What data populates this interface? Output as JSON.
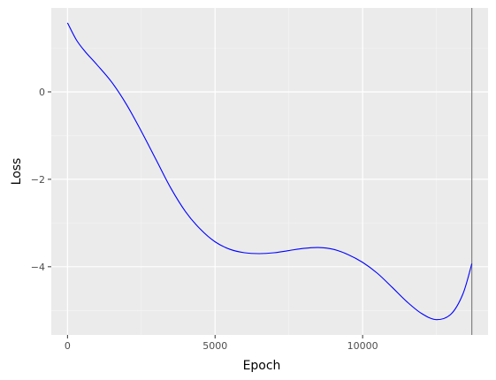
{
  "chart_data": {
    "type": "line",
    "title": "",
    "xlabel": "Epoch",
    "ylabel": "Loss",
    "xlim": [
      -550,
      14250
    ],
    "ylim": [
      -5.56,
      1.92
    ],
    "x_ticks": [
      0,
      5000,
      10000
    ],
    "x_tick_labels": [
      "0",
      "5000",
      "10000"
    ],
    "x_minor_ticks": [
      2500,
      7500,
      12500
    ],
    "y_ticks": [
      0,
      -2,
      -4
    ],
    "y_tick_labels": [
      "0",
      "−2",
      "−4"
    ],
    "y_minor_ticks": [
      1,
      -1,
      -3,
      -5
    ],
    "grid": true,
    "vline": {
      "x": 13700,
      "color": "#808080"
    },
    "series": [
      {
        "color": "#0000ff",
        "x": [
          0,
          300,
          600,
          1000,
          1500,
          2000,
          2500,
          3000,
          3500,
          4000,
          4500,
          5000,
          5500,
          6000,
          6500,
          7000,
          7500,
          8000,
          8500,
          9000,
          9500,
          10000,
          10500,
          11000,
          11500,
          12000,
          12500,
          13000,
          13400,
          13700
        ],
        "y": [
          1.58,
          1.19,
          0.92,
          0.62,
          0.22,
          -0.29,
          -0.9,
          -1.55,
          -2.2,
          -2.74,
          -3.14,
          -3.43,
          -3.6,
          -3.68,
          -3.7,
          -3.68,
          -3.63,
          -3.58,
          -3.56,
          -3.6,
          -3.72,
          -3.9,
          -4.15,
          -4.47,
          -4.8,
          -5.07,
          -5.21,
          -5.08,
          -4.62,
          -3.93
        ]
      }
    ]
  }
}
